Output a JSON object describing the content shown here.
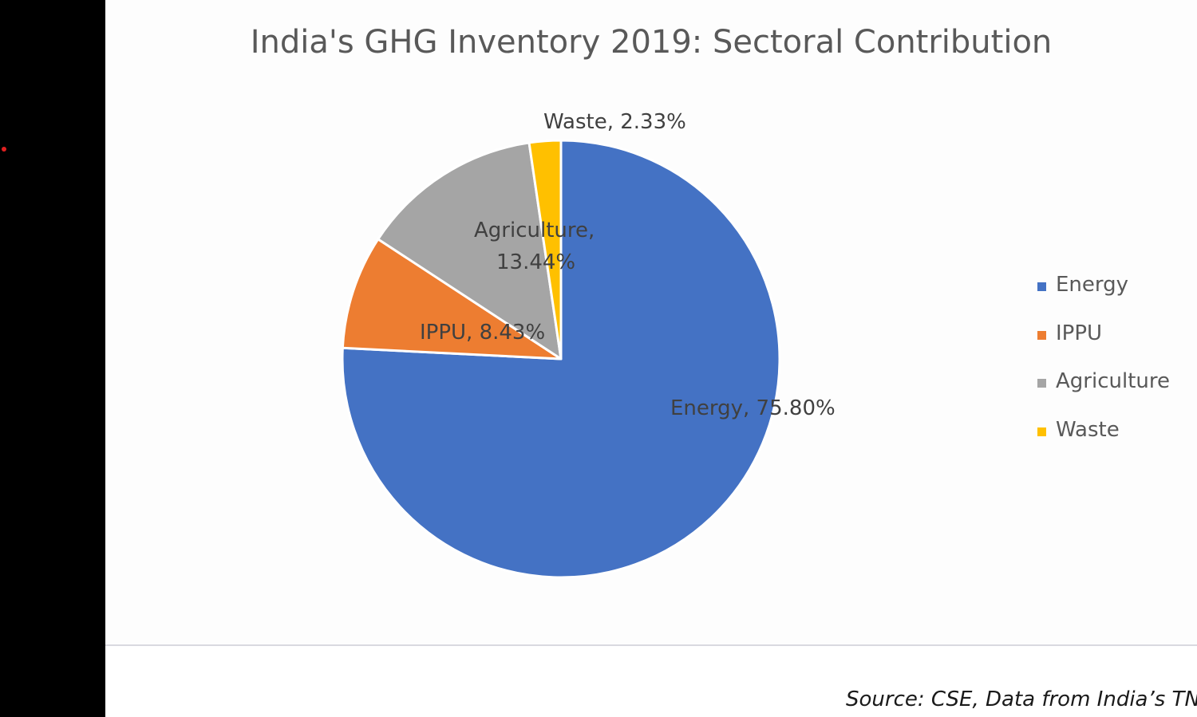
{
  "chart_data": {
    "type": "pie",
    "title": "India's GHG Inventory 2019: Sectoral Contribution",
    "slices": [
      {
        "name": "Energy",
        "value": 75.8,
        "label": "Energy, 75.80%",
        "color": "#4472C4"
      },
      {
        "name": "IPPU",
        "value": 8.43,
        "label": "IPPU, 8.43%",
        "color": "#ED7D31"
      },
      {
        "name": "Agriculture",
        "value": 13.44,
        "label": "Agriculture, 13.44%",
        "color": "#A5A5A5"
      },
      {
        "name": "Waste",
        "value": 2.33,
        "label": "Waste, 2.33%",
        "color": "#FFC000"
      }
    ],
    "legend": {
      "position": "right",
      "items": [
        "Energy",
        "IPPU",
        "Agriculture",
        "Waste"
      ]
    },
    "data_label_color": "#404040"
  },
  "source": "Source: CSE, Data from India’s TNC"
}
